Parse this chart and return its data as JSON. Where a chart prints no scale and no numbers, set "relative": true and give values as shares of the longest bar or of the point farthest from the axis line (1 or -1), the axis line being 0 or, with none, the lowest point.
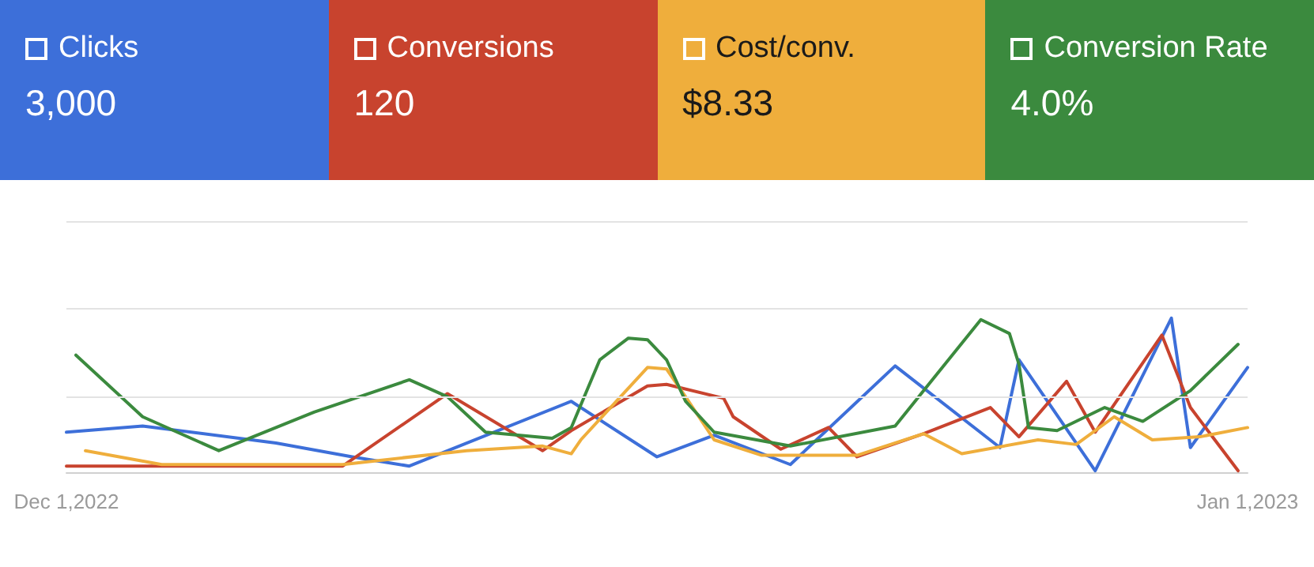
{
  "chart_data": {
    "type": "line",
    "relative": true,
    "legend": "top",
    "ref_lines": [
      {
        "axis": "y",
        "value": 0.49,
        "color": "#e3e3e3"
      },
      {
        "axis": "y",
        "value": 1.06,
        "color": "#e3e3e3"
      },
      {
        "axis": "y",
        "value": 1.63,
        "color": "#e3e3e3"
      }
    ],
    "xlim": [
      "2022-12-01",
      "2023-01-01"
    ],
    "xticks": [
      {
        "value": "2022-12-01",
        "label": "Dec 1,2022"
      },
      {
        "value": "2023-01-01",
        "label": "Jan 1,2023"
      }
    ],
    "annotations": [
      "3,000",
      "120",
      "$8.33",
      "4.0%"
    ],
    "series": [
      {
        "name": "Clicks",
        "color": "#3d6fd9",
        "x": [
          "2022-12-01",
          "2022-12-03",
          "2022-12-06T12:00",
          "2022-12-08T12:00",
          "2022-12-10",
          "2022-12-14T06:00",
          "2022-12-16T12:00",
          "2022-12-18",
          "2022-12-20",
          "2022-12-22T18:00",
          "2022-12-25T12:00",
          "2022-12-26",
          "2022-12-28",
          "2022-12-30",
          "2022-12-30T12:00",
          "2023-01-01"
        ],
        "values": [
          0.26,
          0.3,
          0.19,
          0.1,
          0.04,
          0.46,
          0.1,
          0.24,
          0.05,
          0.69,
          0.16,
          0.73,
          0.01,
          1.0,
          0.16,
          0.68
        ]
      },
      {
        "name": "Conversions",
        "color": "#c8432e",
        "x": [
          "2022-12-01",
          "2022-12-08T06:00",
          "2022-12-11",
          "2022-12-13T12:00",
          "2022-12-14T06:00",
          "2022-12-16T06:00",
          "2022-12-16T18:00",
          "2022-12-18T06:00",
          "2022-12-18T12:00",
          "2022-12-19T18:00",
          "2022-12-21",
          "2022-12-21T18:00",
          "2022-12-23T12:00",
          "2022-12-25T06:00",
          "2022-12-26",
          "2022-12-27T06:00",
          "2022-12-28",
          "2022-12-29T18:00",
          "2022-12-30T12:00",
          "2022-12-31T18:00"
        ],
        "values": [
          0.04,
          0.04,
          0.51,
          0.14,
          0.27,
          0.56,
          0.57,
          0.48,
          0.36,
          0.15,
          0.29,
          0.1,
          0.25,
          0.42,
          0.23,
          0.59,
          0.26,
          0.89,
          0.42,
          0.01
        ]
      },
      {
        "name": "Cost/conv.",
        "color": "#efae3c",
        "x": [
          "2022-12-01T12:00",
          "2022-12-03T12:00",
          "2022-12-08T06:00",
          "2022-12-11T12:00",
          "2022-12-13T12:00",
          "2022-12-14T06:00",
          "2022-12-14T12:00",
          "2022-12-16T06:00",
          "2022-12-16T18:00",
          "2022-12-17T06:00",
          "2022-12-18",
          "2022-12-19T06:00",
          "2022-12-21T18:00",
          "2022-12-23T12:00",
          "2022-12-24T12:00",
          "2022-12-26T12:00",
          "2022-12-27T12:00",
          "2022-12-28T12:00",
          "2022-12-29T12:00",
          "2022-12-30T18:00",
          "2023-01-01"
        ],
        "values": [
          0.14,
          0.05,
          0.05,
          0.14,
          0.17,
          0.12,
          0.21,
          0.68,
          0.67,
          0.49,
          0.21,
          0.11,
          0.11,
          0.25,
          0.12,
          0.21,
          0.18,
          0.36,
          0.21,
          0.23,
          0.29
        ]
      },
      {
        "name": "Conversion Rate",
        "color": "#3b8a3e",
        "x": [
          "2022-12-01T06:00",
          "2022-12-03",
          "2022-12-05",
          "2022-12-07T12:00",
          "2022-12-10",
          "2022-12-11",
          "2022-12-12",
          "2022-12-13T18:00",
          "2022-12-14T06:00",
          "2022-12-15",
          "2022-12-15T18:00",
          "2022-12-16T06:00",
          "2022-12-16T18:00",
          "2022-12-17T06:00",
          "2022-12-18",
          "2022-12-20",
          "2022-12-22T18:00",
          "2022-12-23T12:00",
          "2022-12-25",
          "2022-12-25T18:00",
          "2022-12-26",
          "2022-12-26T06:00",
          "2022-12-27",
          "2022-12-28T06:00",
          "2022-12-29T06:00",
          "2022-12-30T12:00",
          "2022-12-31T18:00"
        ],
        "values": [
          0.76,
          0.36,
          0.14,
          0.39,
          0.6,
          0.49,
          0.26,
          0.22,
          0.29,
          0.73,
          0.87,
          0.86,
          0.73,
          0.46,
          0.26,
          0.17,
          0.3,
          0.53,
          0.99,
          0.9,
          0.7,
          0.29,
          0.27,
          0.42,
          0.33,
          0.53,
          0.83
        ]
      }
    ]
  }
}
